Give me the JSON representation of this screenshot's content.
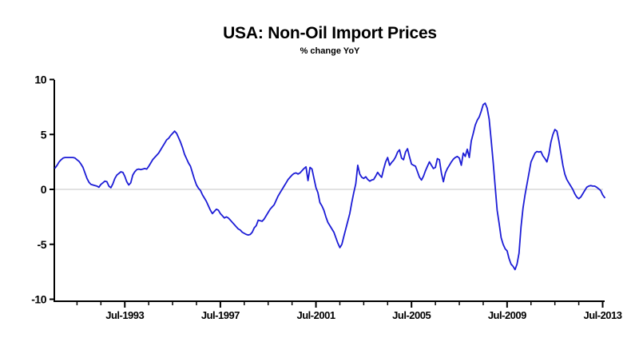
{
  "header": {
    "title": "USA: Non-Oil Import Prices",
    "subtitle": "% change YoY"
  },
  "chart_data": {
    "type": "line",
    "title": "USA: Non-Oil Import Prices",
    "subtitle": "% change YoY",
    "xlabel": "",
    "ylabel": "",
    "ylim": [
      -10,
      10
    ],
    "y_ticks": [
      10,
      5,
      0,
      -5,
      -10
    ],
    "x_minor_ticks": "yearly at July, 1991 through 2013",
    "x_major_tick_labels": [
      "Jul-1993",
      "Jul-1997",
      "Jul-2001",
      "Jul-2005",
      "Jul-2009",
      "Jul-2013"
    ],
    "x_major_tick_years": [
      1993,
      1997,
      2001,
      2005,
      2009,
      2013
    ],
    "x_first_minor_tick_year": 1991,
    "x_last_minor_tick_year": 2013,
    "grid": false,
    "zero_line": true,
    "legend_position": "none",
    "line_color": "#1c1cd6",
    "zero_line_color": "#d8d8d8",
    "axis_color": "#000000",
    "series": [
      {
        "name": "Non-oil import prices, % change YoY",
        "start": "1990-08",
        "frequency": "monthly",
        "values": [
          1.95,
          2.2,
          2.5,
          2.7,
          2.85,
          2.9,
          2.9,
          2.9,
          2.9,
          2.9,
          2.85,
          2.7,
          2.55,
          2.3,
          2.0,
          1.5,
          1.0,
          0.65,
          0.45,
          0.4,
          0.35,
          0.3,
          0.2,
          0.45,
          0.6,
          0.75,
          0.7,
          0.3,
          0.15,
          0.5,
          1.0,
          1.3,
          1.45,
          1.6,
          1.55,
          1.2,
          0.7,
          0.4,
          0.6,
          1.3,
          1.6,
          1.8,
          1.85,
          1.8,
          1.85,
          1.9,
          1.85,
          2.1,
          2.4,
          2.7,
          2.9,
          3.1,
          3.3,
          3.6,
          3.9,
          4.2,
          4.5,
          4.65,
          4.9,
          5.1,
          5.3,
          5.1,
          4.7,
          4.3,
          3.8,
          3.2,
          2.8,
          2.4,
          2.1,
          1.5,
          0.9,
          0.4,
          0.1,
          -0.1,
          -0.5,
          -0.8,
          -1.1,
          -1.5,
          -1.9,
          -2.2,
          -2.0,
          -1.8,
          -1.9,
          -2.2,
          -2.4,
          -2.6,
          -2.5,
          -2.6,
          -2.8,
          -3.0,
          -3.2,
          -3.4,
          -3.6,
          -3.7,
          -3.9,
          -4.0,
          -4.1,
          -4.15,
          -4.1,
          -3.9,
          -3.5,
          -3.3,
          -2.8,
          -2.85,
          -2.9,
          -2.7,
          -2.4,
          -2.1,
          -1.8,
          -1.6,
          -1.4,
          -1.0,
          -0.6,
          -0.3,
          0.0,
          0.3,
          0.6,
          0.9,
          1.1,
          1.3,
          1.45,
          1.5,
          1.4,
          1.5,
          1.7,
          1.9,
          2.05,
          0.8,
          2.0,
          1.85,
          1.0,
          0.15,
          -0.3,
          -1.2,
          -1.5,
          -1.9,
          -2.5,
          -3.0,
          -3.3,
          -3.6,
          -3.9,
          -4.4,
          -4.9,
          -5.3,
          -5.0,
          -4.3,
          -3.6,
          -2.9,
          -2.2,
          -1.2,
          -0.3,
          0.5,
          2.2,
          1.4,
          1.1,
          1.0,
          1.15,
          0.9,
          0.75,
          0.85,
          0.9,
          1.2,
          1.55,
          1.3,
          1.1,
          1.85,
          2.5,
          2.9,
          2.2,
          2.45,
          2.65,
          2.95,
          3.4,
          3.6,
          2.85,
          2.7,
          3.4,
          3.7,
          2.95,
          2.3,
          2.2,
          2.1,
          1.6,
          1.1,
          0.85,
          1.2,
          1.7,
          2.1,
          2.5,
          2.2,
          1.9,
          2.0,
          2.8,
          2.7,
          1.5,
          0.7,
          1.5,
          1.9,
          2.2,
          2.5,
          2.75,
          2.9,
          3.0,
          2.85,
          2.2,
          3.3,
          3.0,
          3.65,
          2.9,
          4.4,
          5.1,
          5.85,
          6.3,
          6.6,
          7.1,
          7.7,
          7.85,
          7.4,
          6.4,
          4.5,
          2.5,
          0.3,
          -1.9,
          -3.1,
          -4.4,
          -5.0,
          -5.4,
          -5.6,
          -6.3,
          -6.8,
          -7.0,
          -7.3,
          -6.8,
          -5.8,
          -3.4,
          -1.7,
          -0.5,
          0.5,
          1.5,
          2.5,
          2.9,
          3.3,
          3.45,
          3.4,
          3.45,
          3.05,
          2.8,
          2.5,
          3.2,
          4.3,
          5.0,
          5.45,
          5.3,
          4.4,
          3.3,
          2.2,
          1.4,
          0.9,
          0.6,
          0.3,
          0.0,
          -0.4,
          -0.7,
          -0.85,
          -0.7,
          -0.4,
          -0.1,
          0.2,
          0.3,
          0.35,
          0.3,
          0.3,
          0.2,
          0.05,
          -0.1,
          -0.5,
          -0.75
        ]
      }
    ]
  }
}
